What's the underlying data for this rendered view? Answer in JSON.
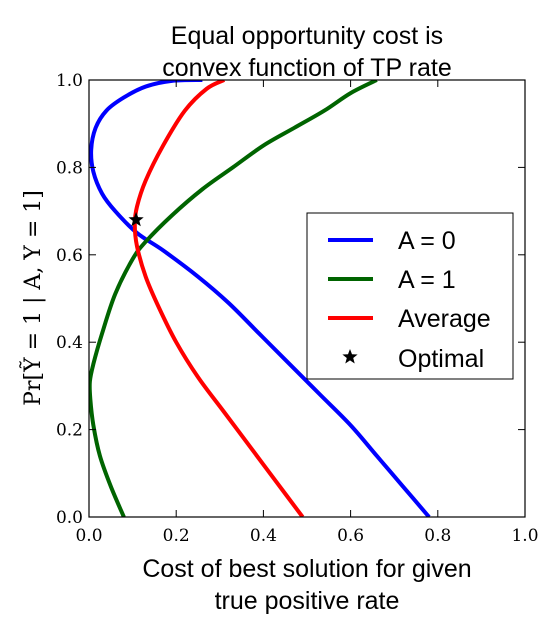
{
  "chart_data": {
    "type": "line",
    "title": [
      "Equal opportunity cost is",
      "convex function of TP rate"
    ],
    "xlabel": [
      "Cost of best solution for given",
      "true positive rate"
    ],
    "ylabel": "Pr[Ỹ = 1 | A, Y = 1]",
    "xlim": [
      0.0,
      1.0
    ],
    "ylim": [
      0.0,
      1.0
    ],
    "xticks": [
      "0.0",
      "0.2",
      "0.4",
      "0.6",
      "0.8",
      "1.0"
    ],
    "yticks": [
      "0.0",
      "0.2",
      "0.4",
      "0.6",
      "0.8",
      "1.0"
    ],
    "grid": false,
    "legend_position": "center-right",
    "series": [
      {
        "name": "A = 0",
        "color": "#0000ff",
        "points": [
          [
            0.78,
            0.0
          ],
          [
            0.72,
            0.07
          ],
          [
            0.66,
            0.14
          ],
          [
            0.6,
            0.21
          ],
          [
            0.53,
            0.28
          ],
          [
            0.46,
            0.35
          ],
          [
            0.39,
            0.42
          ],
          [
            0.32,
            0.49
          ],
          [
            0.25,
            0.55
          ],
          [
            0.17,
            0.61
          ],
          [
            0.11,
            0.65
          ],
          [
            0.06,
            0.7
          ],
          [
            0.03,
            0.74
          ],
          [
            0.01,
            0.79
          ],
          [
            0.005,
            0.84
          ],
          [
            0.015,
            0.89
          ],
          [
            0.04,
            0.93
          ],
          [
            0.08,
            0.96
          ],
          [
            0.13,
            0.985
          ],
          [
            0.19,
            0.998
          ],
          [
            0.26,
            1.0
          ]
        ]
      },
      {
        "name": "A = 1",
        "color": "#006400",
        "points": [
          [
            0.08,
            0.0
          ],
          [
            0.05,
            0.07
          ],
          [
            0.025,
            0.14
          ],
          [
            0.01,
            0.21
          ],
          [
            0.003,
            0.27
          ],
          [
            0.002,
            0.31
          ],
          [
            0.01,
            0.35
          ],
          [
            0.03,
            0.42
          ],
          [
            0.06,
            0.51
          ],
          [
            0.1,
            0.59
          ],
          [
            0.13,
            0.63
          ],
          [
            0.19,
            0.69
          ],
          [
            0.26,
            0.75
          ],
          [
            0.33,
            0.8
          ],
          [
            0.4,
            0.85
          ],
          [
            0.47,
            0.89
          ],
          [
            0.54,
            0.93
          ],
          [
            0.6,
            0.97
          ],
          [
            0.66,
            1.0
          ]
        ]
      },
      {
        "name": "Average",
        "color": "#ff0000",
        "points": [
          [
            0.49,
            0.0
          ],
          [
            0.43,
            0.08
          ],
          [
            0.37,
            0.16
          ],
          [
            0.31,
            0.24
          ],
          [
            0.25,
            0.32
          ],
          [
            0.2,
            0.4
          ],
          [
            0.16,
            0.48
          ],
          [
            0.13,
            0.55
          ],
          [
            0.11,
            0.62
          ],
          [
            0.105,
            0.67
          ],
          [
            0.11,
            0.71
          ],
          [
            0.13,
            0.77
          ],
          [
            0.17,
            0.85
          ],
          [
            0.22,
            0.93
          ],
          [
            0.27,
            0.98
          ],
          [
            0.31,
            1.0
          ]
        ]
      }
    ],
    "markers": [
      {
        "name": "Optimal",
        "symbol": "star",
        "color": "#000000",
        "x": 0.108,
        "y": 0.68
      }
    ],
    "legend": [
      "A = 0",
      "A = 1",
      "Average",
      "Optimal"
    ]
  }
}
